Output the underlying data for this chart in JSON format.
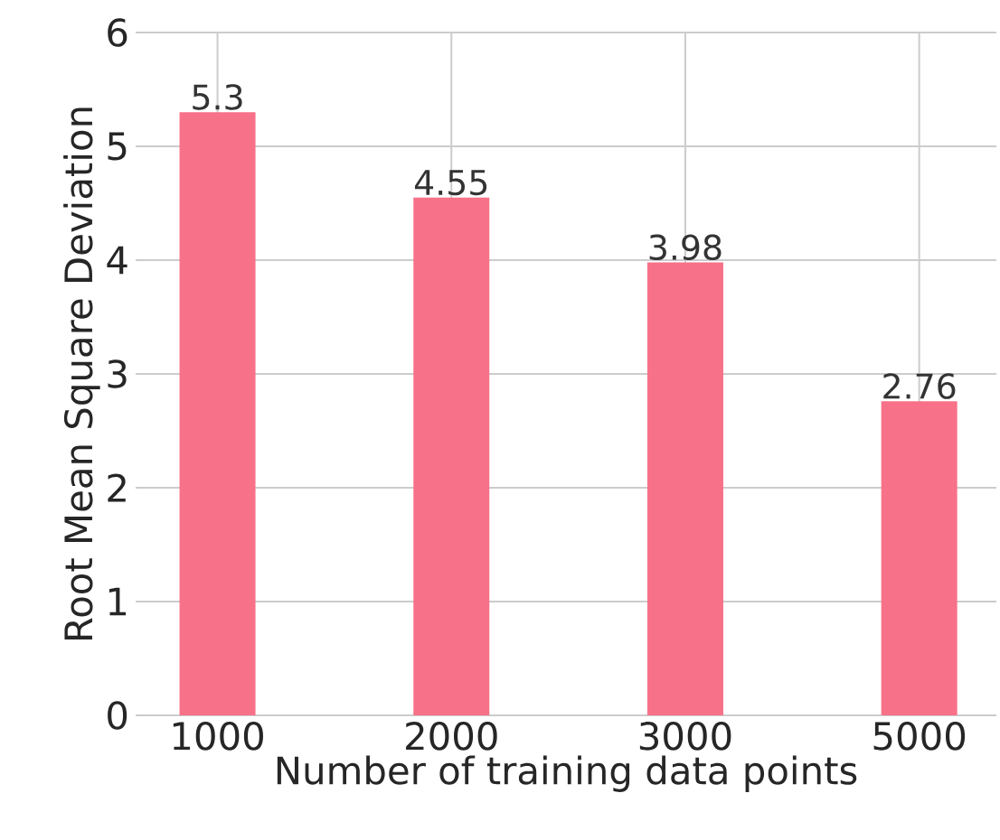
{
  "chart_data": {
    "type": "bar",
    "xlabel": "Number of training data points",
    "ylabel": "Root Mean Square Deviation",
    "categories": [
      "1000",
      "2000",
      "3000",
      "5000"
    ],
    "values": [
      5.3,
      4.55,
      3.98,
      2.76
    ],
    "color": "#f77189",
    "ylim": [
      0,
      6
    ],
    "yticks": [
      0,
      1,
      2,
      3,
      4,
      5,
      6
    ],
    "grid": true,
    "data_labels": true
  }
}
